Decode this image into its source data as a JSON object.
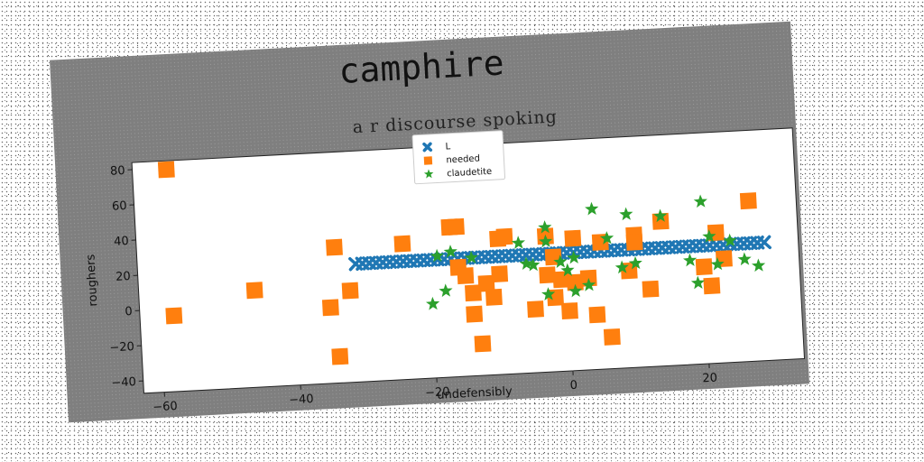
{
  "chart_data": {
    "type": "scatter",
    "title": "camphire",
    "subtitle": "a r discourse spoking",
    "xlabel": "undefensibly",
    "ylabel": "roughers",
    "xlim": [
      -63,
      34
    ],
    "ylim": [
      -47,
      84
    ],
    "xticks": [
      -60,
      -40,
      -20,
      0,
      20
    ],
    "yticks": [
      -40,
      -20,
      0,
      20,
      40,
      60,
      80
    ],
    "grid": false,
    "legend_position": "top-center",
    "series": [
      {
        "name": "L",
        "marker": "x",
        "color": "#1f77b4",
        "points": [
          [
            -31,
            20
          ],
          [
            -30,
            20
          ],
          [
            -29,
            20
          ],
          [
            -28,
            20
          ],
          [
            -27,
            20
          ],
          [
            -26,
            20
          ],
          [
            -25,
            20
          ],
          [
            -24,
            20
          ],
          [
            -23,
            20
          ],
          [
            -22,
            20
          ],
          [
            -21,
            20
          ],
          [
            -20,
            20
          ],
          [
            -19,
            20
          ],
          [
            -18,
            20
          ],
          [
            -17,
            20
          ],
          [
            -16,
            20
          ],
          [
            -15,
            20
          ],
          [
            -14,
            20
          ],
          [
            -13,
            20
          ],
          [
            -12,
            20
          ],
          [
            -11,
            20
          ],
          [
            -10,
            20
          ],
          [
            -9,
            20
          ],
          [
            -8,
            20
          ],
          [
            -7,
            20
          ],
          [
            -6,
            20
          ],
          [
            -5,
            20
          ],
          [
            -4,
            20
          ],
          [
            -3,
            20
          ],
          [
            -2,
            20
          ],
          [
            -1,
            20
          ],
          [
            0,
            20
          ],
          [
            1,
            20
          ],
          [
            2,
            20
          ],
          [
            3,
            20
          ],
          [
            4,
            20
          ],
          [
            5,
            20
          ],
          [
            6,
            20
          ],
          [
            7,
            20
          ],
          [
            8,
            20
          ],
          [
            9,
            20
          ],
          [
            10,
            20
          ],
          [
            11,
            20
          ],
          [
            12,
            20
          ],
          [
            13,
            20
          ],
          [
            14,
            20
          ],
          [
            15,
            20
          ],
          [
            16,
            20
          ],
          [
            17,
            20
          ],
          [
            18,
            20
          ],
          [
            19,
            20
          ],
          [
            20,
            20
          ],
          [
            21,
            20
          ],
          [
            22,
            20
          ],
          [
            23,
            20
          ],
          [
            24,
            20
          ],
          [
            25,
            20
          ],
          [
            26,
            20
          ],
          [
            27,
            20
          ],
          [
            28,
            20
          ],
          [
            29,
            20
          ]
        ]
      },
      {
        "name": "needed",
        "marker": "s",
        "color": "#ff7f0e",
        "points": [
          [
            -58,
            79
          ],
          [
            -58,
            -4
          ],
          [
            -46,
            8
          ],
          [
            -35,
            -4
          ],
          [
            -34,
            30
          ],
          [
            -34,
            -32
          ],
          [
            -32,
            5
          ],
          [
            -24,
            30
          ],
          [
            -17,
            38
          ],
          [
            -16,
            38
          ],
          [
            -16,
            15
          ],
          [
            -15,
            10
          ],
          [
            -14,
            -12
          ],
          [
            -14,
            0
          ],
          [
            -13,
            -29
          ],
          [
            -12,
            5
          ],
          [
            -11,
            -3
          ],
          [
            -10,
            30
          ],
          [
            -10,
            10
          ],
          [
            -9,
            31
          ],
          [
            -5,
            -11
          ],
          [
            -3,
            30
          ],
          [
            -3,
            8
          ],
          [
            -2,
            18
          ],
          [
            -2,
            -5
          ],
          [
            -1,
            5
          ],
          [
            0,
            -13
          ],
          [
            1,
            3
          ],
          [
            1,
            28
          ],
          [
            3,
            5
          ],
          [
            4,
            -16
          ],
          [
            5,
            25
          ],
          [
            6,
            -29
          ],
          [
            9,
            8
          ],
          [
            10,
            28
          ],
          [
            10,
            24
          ],
          [
            12,
            -3
          ],
          [
            14,
            35
          ],
          [
            20,
            8
          ],
          [
            21,
            -3
          ],
          [
            22,
            27
          ],
          [
            23,
            12
          ],
          [
            27,
            44
          ]
        ]
      },
      {
        "name": "claudetite",
        "marker": "*",
        "color": "#2ca02c",
        "points": [
          [
            -20,
            -5
          ],
          [
            -19,
            22
          ],
          [
            -18,
            2
          ],
          [
            -17,
            24
          ],
          [
            -14,
            20
          ],
          [
            -7,
            27
          ],
          [
            -6,
            15
          ],
          [
            -5,
            14
          ],
          [
            -3,
            35
          ],
          [
            -3,
            27
          ],
          [
            -3,
            -3
          ],
          [
            -1,
            15
          ],
          [
            0,
            10
          ],
          [
            1,
            17
          ],
          [
            1,
            -2
          ],
          [
            3,
            1
          ],
          [
            4,
            44
          ],
          [
            6,
            27
          ],
          [
            8,
            10
          ],
          [
            9,
            40
          ],
          [
            10,
            12
          ],
          [
            14,
            38
          ],
          [
            18,
            12
          ],
          [
            19,
            -1
          ],
          [
            20,
            45
          ],
          [
            21,
            25
          ],
          [
            22,
            9
          ],
          [
            24,
            22
          ],
          [
            26,
            11
          ],
          [
            28,
            7
          ]
        ]
      }
    ]
  }
}
